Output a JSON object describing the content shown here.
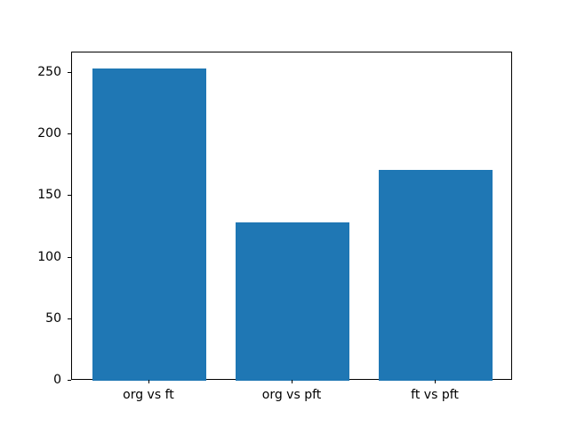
{
  "chart_data": {
    "type": "bar",
    "categories": [
      "org vs ft",
      "org vs pft",
      "ft vs pft"
    ],
    "values": [
      254,
      129,
      171
    ],
    "title": "",
    "xlabel": "",
    "ylabel": "",
    "yticks": [
      0,
      50,
      100,
      150,
      200,
      250
    ],
    "ylim": [
      0,
      266.7
    ],
    "bar_color": "#1f77b4",
    "background_color": "#ffffff",
    "axis_color": "#000000",
    "grid": false,
    "legend": false,
    "bar_width_fraction": 0.8
  }
}
